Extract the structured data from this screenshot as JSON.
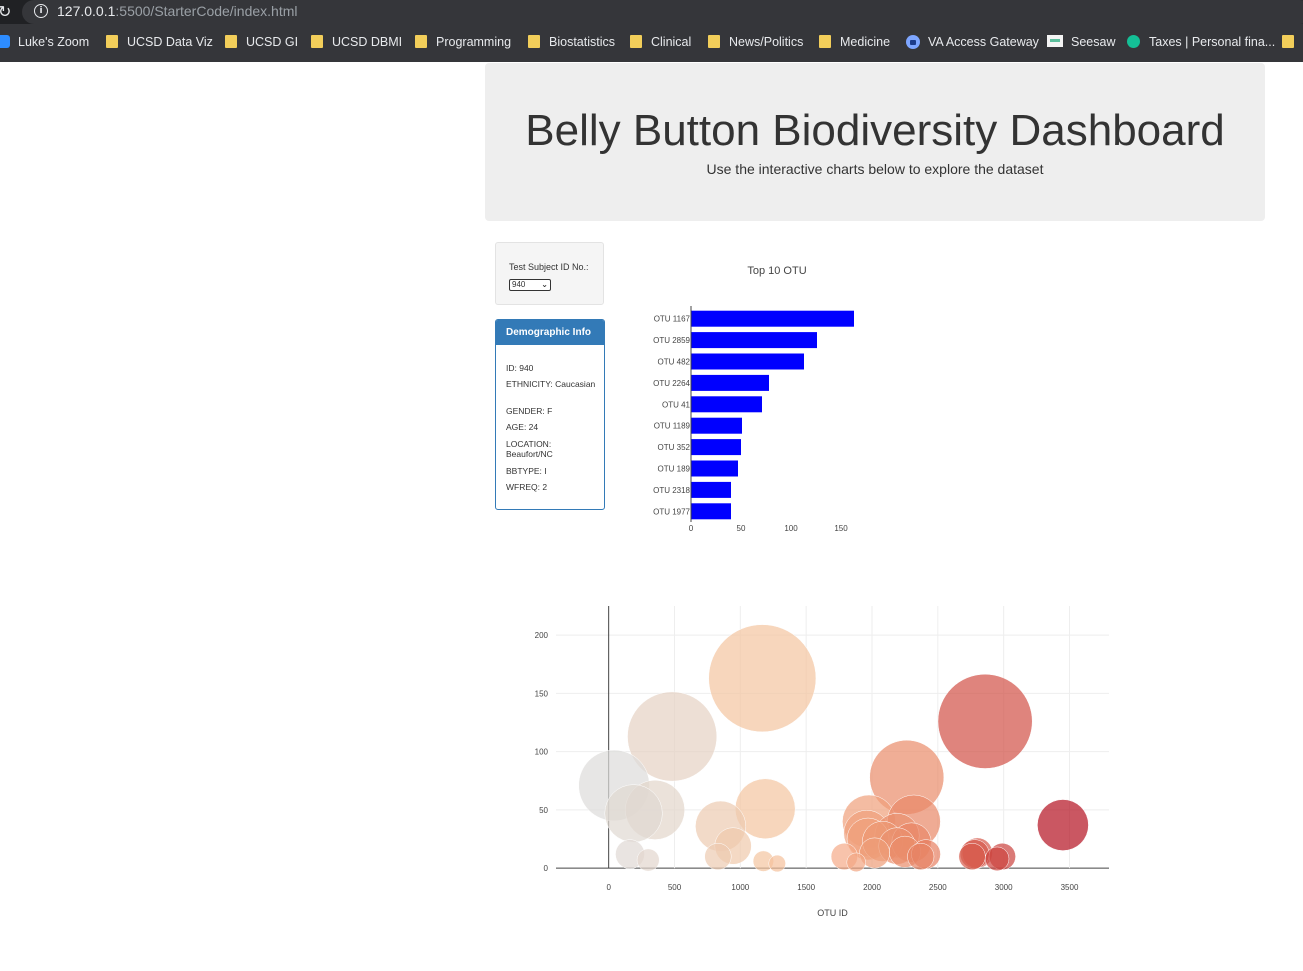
{
  "browser": {
    "url_host": "127.0.0.1",
    "url_rest": ":5500/StarterCode/index.html",
    "bookmarks": [
      {
        "label": "Luke's Zoom",
        "icon": "zoom-icon"
      },
      {
        "label": "UCSD Data Viz",
        "icon": "folder-icon"
      },
      {
        "label": "UCSD GI",
        "icon": "folder-icon"
      },
      {
        "label": "UCSD DBMI",
        "icon": "folder-icon"
      },
      {
        "label": "Programming",
        "icon": "folder-icon"
      },
      {
        "label": "Biostatistics",
        "icon": "folder-icon"
      },
      {
        "label": "Clinical",
        "icon": "folder-icon"
      },
      {
        "label": "News/Politics",
        "icon": "folder-icon"
      },
      {
        "label": "Medicine",
        "icon": "folder-icon"
      },
      {
        "label": "VA Access Gateway",
        "icon": "lock-icon"
      },
      {
        "label": "Seesaw",
        "icon": "seesaw-icon"
      },
      {
        "label": "Taxes | Personal fina...",
        "icon": "khan-icon"
      }
    ]
  },
  "header": {
    "title": "Belly Button Biodiversity Dashboard",
    "subtitle": "Use the interactive charts below to explore the dataset"
  },
  "selector": {
    "label": "Test Subject ID No.:",
    "selected": "940"
  },
  "demographics": {
    "heading": "Demographic Info",
    "rows": [
      "ID: 940",
      "ETHNICITY: Caucasian",
      "GENDER: F",
      "AGE: 24",
      "LOCATION: Beaufort/NC",
      "BBTYPE: I",
      "WFREQ: 2"
    ]
  },
  "colors": {
    "bar": "#0000ff",
    "panel": "#337ab7"
  },
  "chart_data": [
    {
      "type": "bar",
      "orientation": "horizontal",
      "title": "Top 10 OTU",
      "categories": [
        "OTU 1167",
        "OTU 2859",
        "OTU 482",
        "OTU 2264",
        "OTU 41",
        "OTU 1189",
        "OTU 352",
        "OTU 189",
        "OTU 2318",
        "OTU 1977"
      ],
      "values": [
        163,
        126,
        113,
        78,
        71,
        51,
        50,
        47,
        40,
        40
      ],
      "xticks": [
        0,
        50,
        100,
        150
      ],
      "xlim": [
        0,
        170
      ]
    },
    {
      "type": "scatter",
      "subtype": "bubble",
      "xlabel": "OTU ID",
      "ylabel": "",
      "xlim": [
        -400,
        3800
      ],
      "ylim": [
        -5,
        225
      ],
      "xticks": [
        0,
        500,
        1000,
        1500,
        2000,
        2500,
        3000,
        3500
      ],
      "yticks": [
        0,
        50,
        100,
        150,
        200
      ],
      "grid": true,
      "colorscale": "white-to-red",
      "points": [
        {
          "x": 41,
          "y": 71
        },
        {
          "x": 189,
          "y": 47
        },
        {
          "x": 352,
          "y": 50
        },
        {
          "x": 482,
          "y": 113
        },
        {
          "x": 1167,
          "y": 163
        },
        {
          "x": 1189,
          "y": 51
        },
        {
          "x": 850,
          "y": 36
        },
        {
          "x": 945,
          "y": 19
        },
        {
          "x": 1977,
          "y": 40
        },
        {
          "x": 1960,
          "y": 30
        },
        {
          "x": 1970,
          "y": 25
        },
        {
          "x": 2080,
          "y": 23
        },
        {
          "x": 2264,
          "y": 78
        },
        {
          "x": 2318,
          "y": 40
        },
        {
          "x": 2190,
          "y": 28
        },
        {
          "x": 2300,
          "y": 22
        },
        {
          "x": 2190,
          "y": 19
        },
        {
          "x": 2250,
          "y": 14
        },
        {
          "x": 2859,
          "y": 126
        },
        {
          "x": 3450,
          "y": 37
        },
        {
          "x": 1280,
          "y": 4
        },
        {
          "x": 162,
          "y": 12
        },
        {
          "x": 300,
          "y": 7
        },
        {
          "x": 830,
          "y": 10
        },
        {
          "x": 1175,
          "y": 6
        },
        {
          "x": 1790,
          "y": 10
        },
        {
          "x": 2020,
          "y": 13
        },
        {
          "x": 1880,
          "y": 5
        },
        {
          "x": 2370,
          "y": 10
        },
        {
          "x": 2410,
          "y": 12
        },
        {
          "x": 2760,
          "y": 10
        },
        {
          "x": 2780,
          "y": 12
        },
        {
          "x": 2800,
          "y": 13
        },
        {
          "x": 2950,
          "y": 8
        },
        {
          "x": 2990,
          "y": 10
        }
      ]
    }
  ]
}
